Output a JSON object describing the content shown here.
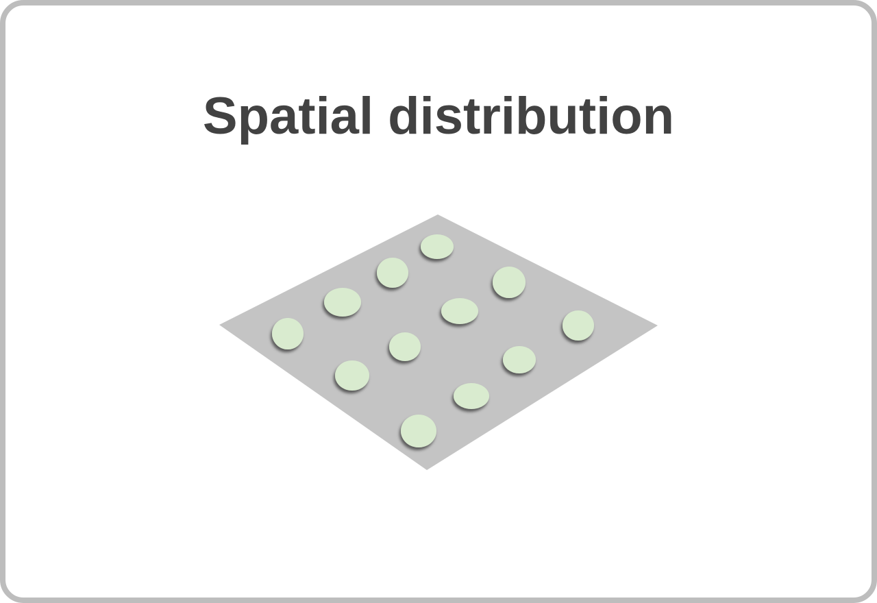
{
  "title": "Spatial distribution",
  "colors": {
    "border": "#bdbdbd",
    "title": "#424242",
    "plane": "#c4c4c4",
    "dot": "#d9ebcf"
  },
  "diagram": {
    "plane": "flat gray square shown in perspective",
    "dots": 12,
    "dot_color_name": "light green",
    "arrangement": "evenly spaced grid-like distribution"
  }
}
